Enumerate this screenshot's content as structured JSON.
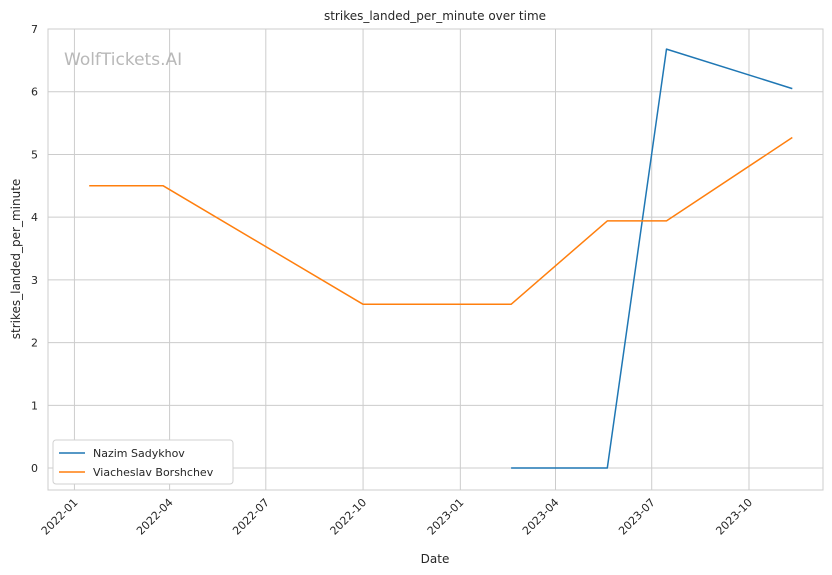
{
  "watermark": "WolfTickets.AI",
  "chart_data": {
    "type": "line",
    "title": "strikes_landed_per_minute over time",
    "xlabel": "Date",
    "ylabel": "strikes_landed_per_minute",
    "x_ticks": [
      "2022-01",
      "2022-04",
      "2022-07",
      "2022-10",
      "2023-01",
      "2023-04",
      "2023-07",
      "2023-10"
    ],
    "y_ticks": [
      0,
      1,
      2,
      3,
      4,
      5,
      6,
      7
    ],
    "xlim": [
      "2021-12-07",
      "2023-12-10"
    ],
    "ylim": [
      -0.35,
      7
    ],
    "grid": true,
    "legend_position": "lower-left",
    "series": [
      {
        "name": "Nazim Sadykhov",
        "color": "#1f77b4",
        "points": [
          {
            "x": "2023-02-18",
            "y": 0
          },
          {
            "x": "2023-05-20",
            "y": 0
          },
          {
            "x": "2023-07-15",
            "y": 6.68
          },
          {
            "x": "2023-11-11",
            "y": 6.05
          }
        ]
      },
      {
        "name": "Viacheslav Borshchev",
        "color": "#ff7f0e",
        "points": [
          {
            "x": "2022-01-15",
            "y": 4.5
          },
          {
            "x": "2022-03-26",
            "y": 4.5
          },
          {
            "x": "2022-10-01",
            "y": 2.61
          },
          {
            "x": "2023-02-18",
            "y": 2.61
          },
          {
            "x": "2023-05-20",
            "y": 3.94
          },
          {
            "x": "2023-07-15",
            "y": 3.94
          },
          {
            "x": "2023-11-11",
            "y": 5.27
          }
        ]
      }
    ]
  }
}
